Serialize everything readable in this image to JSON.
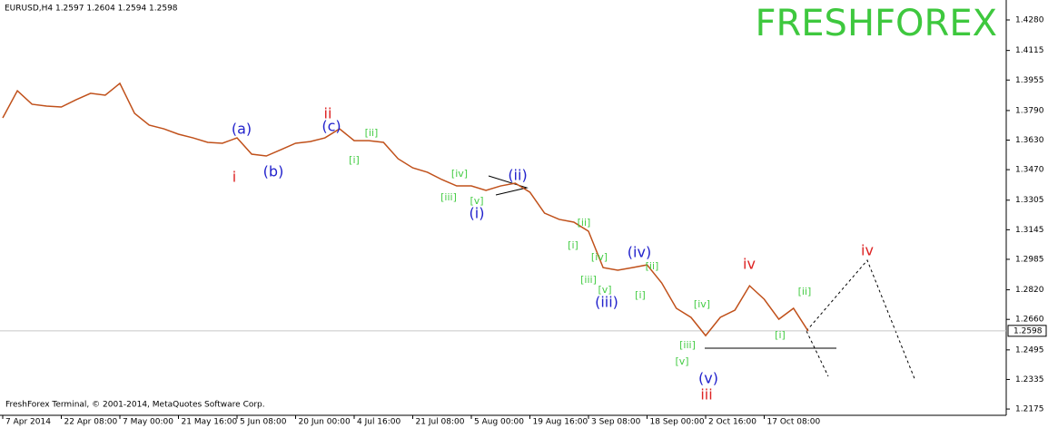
{
  "chart_data": {
    "type": "line",
    "title": "EURUSD,H4 1.2597 1.2604 1.2594 1.2598",
    "watermark": "FRESHFOREX",
    "footer": "FreshForex Terminal, © 2001-2014, MetaQuotes Software Corp.",
    "categories": [
      "7 Apr 2014",
      null,
      null,
      null,
      "22 Apr 08:00",
      null,
      null,
      null,
      "7 May 00:00",
      null,
      null,
      null,
      "21 May 16:00",
      null,
      null,
      null,
      "5 Jun 08:00",
      null,
      null,
      null,
      "20 Jun 00:00",
      null,
      null,
      null,
      "4 Jul 16:00",
      null,
      null,
      null,
      "21 Jul 08:00",
      null,
      null,
      null,
      "5 Aug 00:00",
      null,
      null,
      null,
      "19 Aug 16:00",
      null,
      null,
      null,
      "3 Sep 08:00",
      null,
      null,
      null,
      "18 Sep 00:00",
      null,
      null,
      null,
      "2 Oct 16:00",
      null,
      null,
      null,
      "17 Oct 08:00",
      null,
      null,
      null
    ],
    "series": [
      {
        "name": "EURUSD",
        "color": "#c0501a",
        "values": [
          1.375,
          1.3897,
          1.3824,
          1.3814,
          1.3809,
          1.3848,
          1.3883,
          1.3873,
          1.3937,
          1.3775,
          1.3711,
          1.3691,
          1.3662,
          1.3642,
          1.3618,
          1.3613,
          1.3642,
          1.3554,
          1.3544,
          1.3578,
          1.3613,
          1.3622,
          1.3642,
          1.3691,
          1.3627,
          1.3627,
          1.3618,
          1.3529,
          1.348,
          1.3456,
          1.3416,
          1.3382,
          1.3382,
          1.3358,
          1.3382,
          1.3397,
          1.3348,
          1.3235,
          1.3201,
          1.3186,
          1.3137,
          1.294,
          1.2926,
          1.294,
          1.2955,
          1.2857,
          1.272,
          1.2671,
          1.2572,
          1.2671,
          1.271,
          1.2842,
          1.2769,
          1.2661,
          1.272,
          1.2597
        ]
      }
    ],
    "last_price": 1.2598,
    "ylim": [
      1.2141,
      1.4388
    ],
    "yticks": [
      {
        "value": 1.428,
        "label": "1.4280"
      },
      {
        "value": 1.4115,
        "label": "1.4115"
      },
      {
        "value": 1.3955,
        "label": "1.3955"
      },
      {
        "value": 1.379,
        "label": "1.3790"
      },
      {
        "value": 1.363,
        "label": "1.3630"
      },
      {
        "value": 1.347,
        "label": "1.3470"
      },
      {
        "value": 1.3305,
        "label": "1.3305"
      },
      {
        "value": 1.3145,
        "label": "1.3145"
      },
      {
        "value": 1.2985,
        "label": "1.2985"
      },
      {
        "value": 1.282,
        "label": "1.2820"
      },
      {
        "value": 1.266,
        "label": "1.2660"
      },
      {
        "value": 1.2495,
        "label": "1.2495"
      },
      {
        "value": 1.2335,
        "label": "1.2335"
      },
      {
        "value": 1.2175,
        "label": "1.2175"
      }
    ],
    "annotations": [
      {
        "text": "i",
        "color": "#dd2222"
      },
      {
        "text": "(a)",
        "color": "#2222cc"
      },
      {
        "text": "(b)",
        "color": "#2222cc"
      },
      {
        "text": "ii",
        "color": "#dd2222"
      },
      {
        "text": "(c)",
        "color": "#2222cc"
      },
      {
        "text": "[i]",
        "color": "#44cc44"
      },
      {
        "text": "[ii]",
        "color": "#44cc44"
      },
      {
        "text": "[iii]",
        "color": "#44cc44"
      },
      {
        "text": "[iv]",
        "color": "#44cc44"
      },
      {
        "text": "[v]",
        "color": "#44cc44"
      },
      {
        "text": "(i)",
        "color": "#2222cc"
      },
      {
        "text": "(ii)",
        "color": "#2222cc"
      },
      {
        "text": "[i]",
        "color": "#44cc44"
      },
      {
        "text": "[ii]",
        "color": "#44cc44"
      },
      {
        "text": "[iii]",
        "color": "#44cc44"
      },
      {
        "text": "[iv]",
        "color": "#44cc44"
      },
      {
        "text": "[v]",
        "color": "#44cc44"
      },
      {
        "text": "(iii)",
        "color": "#2222cc"
      },
      {
        "text": "(iv)",
        "color": "#2222cc"
      },
      {
        "text": "[i]",
        "color": "#44cc44"
      },
      {
        "text": "[ii]",
        "color": "#44cc44"
      },
      {
        "text": "[iii]",
        "color": "#44cc44"
      },
      {
        "text": "[iv]",
        "color": "#44cc44"
      },
      {
        "text": "[v]",
        "color": "#44cc44"
      },
      {
        "text": "(v)",
        "color": "#2222cc"
      },
      {
        "text": "iii",
        "color": "#dd2222"
      },
      {
        "text": "iv",
        "color": "#dd2222"
      },
      {
        "text": "[i]",
        "color": "#44cc44"
      },
      {
        "text": "[ii]",
        "color": "#44cc44"
      },
      {
        "text": "iv",
        "color": "#dd2222"
      }
    ]
  }
}
